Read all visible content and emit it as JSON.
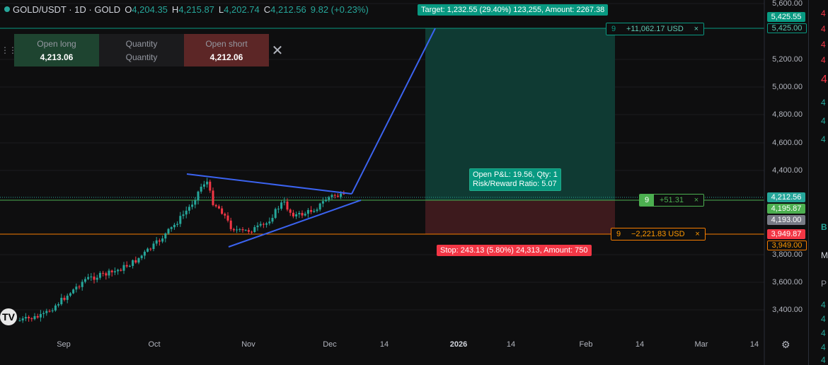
{
  "header": {
    "symbol": "GOLD/USDT · 1D · GOLD",
    "open_label": "O",
    "open": "4,204.35",
    "high_label": "H",
    "high": "4,215.87",
    "low_label": "L",
    "low": "4,202.74",
    "close_label": "C",
    "close": "4,212.56",
    "change": "9.82 (+0.23%)"
  },
  "order_panel": {
    "long_label": "Open long",
    "long_price": "4,213.06",
    "qty_label": "Quantity",
    "qty_placeholder": "Quantity",
    "short_label": "Open short",
    "short_price": "4,212.06"
  },
  "position_tool": {
    "target_text": "Target: 1,232.55 (29.40%) 123,255, Amount: 2267.38",
    "stop_text": "Stop: 243.13 (5.80%) 24,313, Amount: 750",
    "pnl_line1": "Open P&L: 19.56, Qty: 1",
    "pnl_line2": "Risk/Reward Ratio: 5.07"
  },
  "order_tags": {
    "tp_qty": "9",
    "tp_value": "+11,062.17 USD",
    "pos_qty": "9",
    "pos_value": "+51.31",
    "sl_qty": "9",
    "sl_value": "−2,221.83 USD",
    "close_icon": "×"
  },
  "price_axis": {
    "labels": [
      "5,600.00",
      "5,200.00",
      "5,000.00",
      "4,800.00",
      "4,600.00",
      "4,400.00",
      "3,800.00",
      "3,600.00",
      "3,400.00"
    ],
    "tag_target_a": "5,425.55",
    "tag_target_b": "5,425.00",
    "tag_last": "4,212.56",
    "tag_entry_a": "4,195.87",
    "tag_entry_b": "4,193.00",
    "tag_stop_a": "3,949.87",
    "tag_stop_b": "3,949.00"
  },
  "time_axis": {
    "labels": [
      "Sep",
      "Oct",
      "Nov",
      "Dec",
      "14",
      "2026",
      "14",
      "Feb",
      "14",
      "Mar",
      "14"
    ]
  },
  "right_strip": {
    "items": [
      "4",
      "4",
      "4",
      "4",
      "4",
      "4",
      "4",
      "4",
      "B",
      "M",
      "P",
      "4",
      "4",
      "4",
      "4",
      "4"
    ]
  },
  "colors": {
    "up": "#26a69a",
    "down": "#f23645",
    "trend": "#3b63f0",
    "profit": "#089981",
    "loss": "#f23645"
  },
  "chart_data": {
    "type": "candlestick",
    "price_range": [
      3280,
      5620
    ],
    "last_price": 4212.56,
    "entry": 4195.87,
    "target": 5425.55,
    "stop": 3949.87
  }
}
